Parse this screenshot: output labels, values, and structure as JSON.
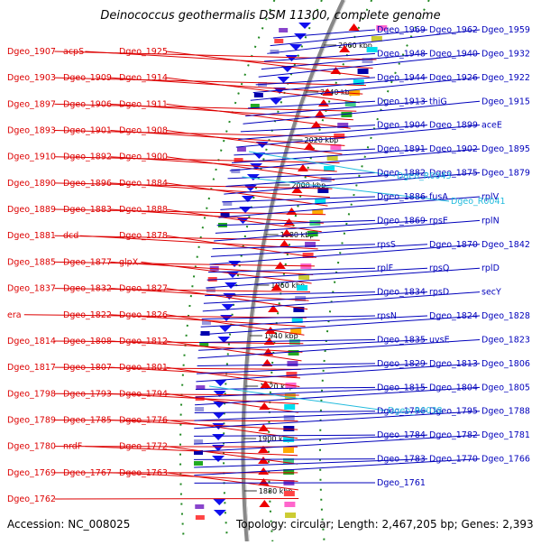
{
  "title": "Deinococcus geothermalis DSM 11300, complete genome",
  "accession": "Accession: NC_008025",
  "summary": "Topology: circular; Length: 2,467,205 bp; Genes: 2,393",
  "colors": {
    "left_label": "#dd0000",
    "right_label": "#0000bb",
    "rna_label": "#22bbdd",
    "backbone": "#888888",
    "tick": "#228822"
  },
  "kbp_ticks": [
    "2060 kbp",
    "2040 kbp",
    "2020 kbp",
    "2000 kbp",
    "1980 kbp",
    "1960 kbp",
    "1940 kbp",
    "1920 kbp",
    "1900 kbp",
    "1880 kbp"
  ],
  "left_labels": [
    "Dgeo_1907",
    "acpS",
    "Dgeo_1925",
    "Dgeo_1903",
    "Dgeo_1909",
    "Dgeo_1914",
    "Dgeo_1897",
    "Dgeo_1906",
    "Dgeo_1911",
    "Dgeo_1893",
    "Dgeo_1901",
    "Dgeo_1908",
    "Dgeo_1910",
    "Dgeo_1892",
    "Dgeo_1900",
    "Dgeo_1890",
    "Dgeo_1896",
    "Dgeo_1884",
    "Dgeo_1889",
    "Dgeo_1883",
    "Dgeo_1888",
    "Dgeo_1881",
    "dcd",
    "Dgeo_1878",
    "Dgeo_1885",
    "Dgeo_1877",
    "glpX",
    "Dgeo_1837",
    "Dgeo_1832",
    "Dgeo_1827",
    "era",
    "Dgeo_1822",
    "Dgeo_1826",
    "Dgeo_1814",
    "Dgeo_1808",
    "Dgeo_1812",
    "Dgeo_1817",
    "Dgeo_1807",
    "Dgeo_1801",
    "Dgeo_1798",
    "Dgeo_1793",
    "Dgeo_1794",
    "Dgeo_1789",
    "Dgeo_1785",
    "Dgeo_1776",
    "Dgeo_1780",
    "nrdF",
    "Dgeo_1772",
    "Dgeo_1769",
    "Dgeo_1767",
    "Dgeo_1763",
    "Dgeo_1762"
  ],
  "right_labels": [
    "Dgeo_1969",
    "Dgeo_1962",
    "Dgeo_1959",
    "Dgeo_1948",
    "Dgeo_1940",
    "Dgeo_1932",
    "Dgeo_1944",
    "Dgeo_1926",
    "Dgeo_1922",
    "Dgeo_1913",
    "thiG",
    "Dgeo_1915",
    "Dgeo_1904",
    "Dgeo_1899",
    "aceE",
    "Dgeo_1891",
    "Dgeo_1902",
    "Dgeo_1895",
    "Dgeo_1882",
    "Dgeo_1875",
    "Dgeo_1879",
    "Dgeo_1886",
    "fusA",
    "rplV",
    "Dgeo_1869",
    "rpsE",
    "rplN",
    "rpsS",
    "Dgeo_1870",
    "Dgeo_1842",
    "rplF",
    "rpsQ",
    "rplD",
    "Dgeo_1834",
    "rpsD",
    "secY",
    "rpsN",
    "Dgeo_1824",
    "Dgeo_1828",
    "Dgeo_1835",
    "uvsE",
    "Dgeo_1823",
    "Dgeo_1829",
    "Dgeo_1813",
    "Dgeo_1806",
    "Dgeo_1815",
    "Dgeo_1804",
    "Dgeo_1805",
    "Dgeo_1796",
    "Dgeo_1795",
    "Dgeo_1788",
    "Dgeo_1784",
    "Dgeo_1782",
    "Dgeo_1781",
    "Dgeo_1783",
    "Dgeo_1770",
    "Dgeo_1766",
    "Dgeo_1761"
  ],
  "rna_labels": [
    "Dgeo_R0043",
    "Dgeo_R0041",
    "Dgeo_R0038"
  ]
}
